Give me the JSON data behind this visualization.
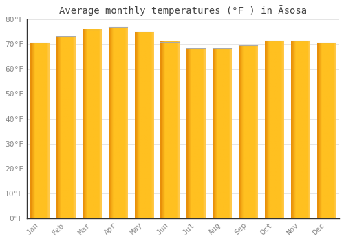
{
  "title": "Average monthly temperatures (°F ) in Āsosa",
  "months": [
    "Jan",
    "Feb",
    "Mar",
    "Apr",
    "May",
    "Jun",
    "Jul",
    "Aug",
    "Sep",
    "Oct",
    "Nov",
    "Dec"
  ],
  "values": [
    70.5,
    73.0,
    76.0,
    77.0,
    75.0,
    71.0,
    68.5,
    68.5,
    69.5,
    71.5,
    71.5,
    70.5
  ],
  "ylim": [
    0,
    80
  ],
  "yticks": [
    0,
    10,
    20,
    30,
    40,
    50,
    60,
    70,
    80
  ],
  "background_color": "#FFFFFF",
  "grid_color": "#E0E0E0",
  "title_fontsize": 10,
  "tick_fontsize": 8,
  "bar_left_color": "#E8900A",
  "bar_main_color": "#FFC020",
  "bar_right_color": "#FFD060",
  "bar_top_color": "#B8B8B8",
  "font_color": "#888888",
  "title_color": "#444444",
  "axis_color": "#333333"
}
